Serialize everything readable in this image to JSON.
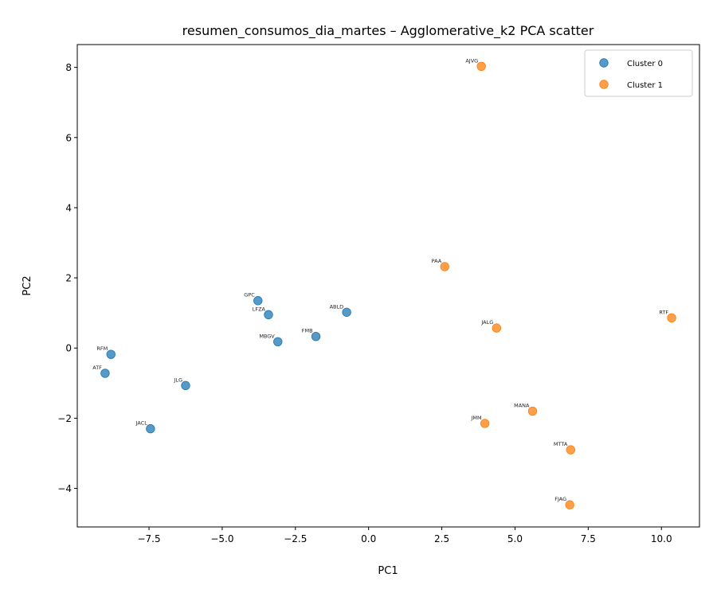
{
  "chart_data": {
    "type": "scatter",
    "title": "resumen_consumos_dia_martes – Agglomerative_k2 PCA scatter",
    "xlabel": "PC1",
    "ylabel": "PC2",
    "xlim": [
      -9.95,
      11.3
    ],
    "ylim": [
      -5.1,
      8.65
    ],
    "xticks": [
      -7.5,
      -5.0,
      -2.5,
      0.0,
      2.5,
      5.0,
      7.5,
      10.0
    ],
    "xtick_labels": [
      "−7.5",
      "−5.0",
      "−2.5",
      "0.0",
      "2.5",
      "5.0",
      "7.5",
      "10.0"
    ],
    "yticks": [
      -4,
      -2,
      0,
      2,
      4,
      6,
      8
    ],
    "ytick_labels": [
      "−4",
      "−2",
      "0",
      "2",
      "4",
      "6",
      "8"
    ],
    "grid": false,
    "legend_position": "top-right",
    "series": [
      {
        "name": "Cluster 0",
        "color": "#1f77b4",
        "points": [
          {
            "label": "RFM",
            "x": -8.8,
            "y": -0.18
          },
          {
            "label": "ATF",
            "x": -9.0,
            "y": -0.72
          },
          {
            "label": "JLG",
            "x": -6.25,
            "y": -1.07
          },
          {
            "label": "JACL",
            "x": -7.45,
            "y": -2.3
          },
          {
            "label": "GPC",
            "x": -3.78,
            "y": 1.35
          },
          {
            "label": "LFZA",
            "x": -3.42,
            "y": 0.95
          },
          {
            "label": "MBGV",
            "x": -3.1,
            "y": 0.18
          },
          {
            "label": "FMB",
            "x": -1.8,
            "y": 0.33
          },
          {
            "label": "ABLD",
            "x": -0.75,
            "y": 1.02
          }
        ]
      },
      {
        "name": "Cluster 1",
        "color": "#ff7f0e",
        "points": [
          {
            "label": "AJVG",
            "x": 3.85,
            "y": 8.03
          },
          {
            "label": "PAA",
            "x": 2.6,
            "y": 2.32
          },
          {
            "label": "JALG",
            "x": 4.37,
            "y": 0.57
          },
          {
            "label": "RTF",
            "x": 10.35,
            "y": 0.86
          },
          {
            "label": "MANA",
            "x": 5.6,
            "y": -1.8
          },
          {
            "label": "JMM",
            "x": 3.97,
            "y": -2.15
          },
          {
            "label": "MTTA",
            "x": 6.9,
            "y": -2.9
          },
          {
            "label": "FJAG",
            "x": 6.87,
            "y": -4.47
          }
        ]
      }
    ]
  }
}
